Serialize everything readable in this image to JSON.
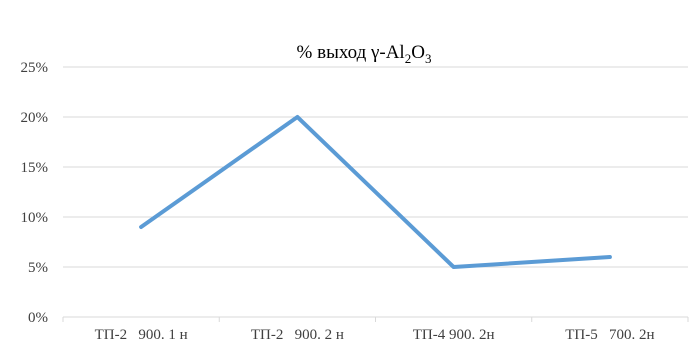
{
  "chart_data": {
    "type": "line",
    "title": {
      "prefix": "% выход γ-Al",
      "sub1": "2",
      "mid": "O",
      "sub2": "3"
    },
    "categories": [
      "ТП-2   900. 1 н",
      "ТП-2   900. 2 н",
      "ТП-4 900. 2н",
      "ТП-5   700. 2н"
    ],
    "series": [
      {
        "values": [
          9,
          20,
          5,
          6
        ],
        "color": "#5b9bd5"
      }
    ],
    "yticks": [
      "0%",
      "5%",
      "10%",
      "15%",
      "20%",
      "25%"
    ],
    "ylim": [
      0,
      25
    ],
    "ytick_step": 5,
    "xlabel": "",
    "ylabel": "",
    "grid": true,
    "legend": "none",
    "colors": {
      "grid": "#d9d9d9",
      "text": "#404040"
    }
  }
}
